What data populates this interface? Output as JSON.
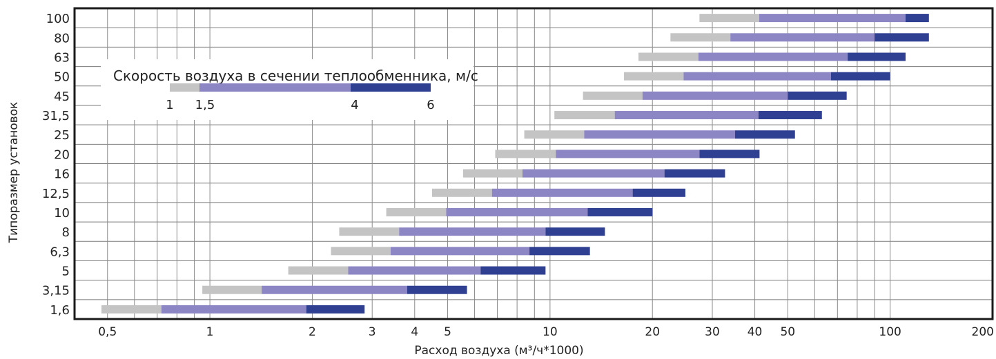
{
  "chart_data": {
    "type": "bar",
    "subtype": "floating-range",
    "x_scale": "log",
    "xlim": [
      0.4,
      200
    ],
    "xlabel": "Расход воздуха (м³/ч*1000)",
    "ylabel": "Типоразмер установок",
    "x_ticks": [
      {
        "v": 0.5,
        "label": "0,5"
      },
      {
        "v": 1,
        "label": "1"
      },
      {
        "v": 2,
        "label": "2"
      },
      {
        "v": 3,
        "label": "3"
      },
      {
        "v": 4,
        "label": "4"
      },
      {
        "v": 5,
        "label": "5"
      },
      {
        "v": 10,
        "label": "10"
      },
      {
        "v": 20,
        "label": "20"
      },
      {
        "v": 30,
        "label": "30"
      },
      {
        "v": 40,
        "label": "40"
      },
      {
        "v": 50,
        "label": "50"
      },
      {
        "v": 100,
        "label": "100"
      },
      {
        "v": 200,
        "label": "200"
      }
    ],
    "minor_grid": [
      0.6,
      0.7,
      0.8,
      0.9,
      6,
      7,
      8,
      9,
      60,
      70,
      80,
      90
    ],
    "categories": [
      "1,6",
      "3,15",
      "5",
      "6,3",
      "8",
      "10",
      "12,5",
      "16",
      "20",
      "25",
      "31,5",
      "45",
      "50",
      "63",
      "80",
      "100"
    ],
    "rows": [
      {
        "size": "1,6",
        "v1": 0.48,
        "v15": 0.72,
        "v4": 1.92,
        "v6": 2.85
      },
      {
        "size": "3,15",
        "v1": 0.95,
        "v15": 1.42,
        "v4": 3.8,
        "v6": 5.7
      },
      {
        "size": "5",
        "v1": 1.7,
        "v15": 2.55,
        "v4": 6.25,
        "v6": 9.7
      },
      {
        "size": "6,3",
        "v1": 2.27,
        "v15": 3.4,
        "v4": 8.7,
        "v6": 13.1
      },
      {
        "size": "8",
        "v1": 2.4,
        "v15": 3.6,
        "v4": 9.7,
        "v6": 14.5
      },
      {
        "size": "10",
        "v1": 3.3,
        "v15": 4.95,
        "v4": 12.9,
        "v6": 20.0
      },
      {
        "size": "12,5",
        "v1": 4.5,
        "v15": 6.75,
        "v4": 17.5,
        "v6": 25.0
      },
      {
        "size": "16",
        "v1": 5.55,
        "v15": 8.3,
        "v4": 21.7,
        "v6": 32.7
      },
      {
        "size": "20",
        "v1": 6.9,
        "v15": 10.4,
        "v4": 27.5,
        "v6": 41.3
      },
      {
        "size": "25",
        "v1": 8.4,
        "v15": 12.6,
        "v4": 35.0,
        "v6": 52.5
      },
      {
        "size": "31,5",
        "v1": 10.3,
        "v15": 15.5,
        "v4": 41.0,
        "v6": 63.0
      },
      {
        "size": "45",
        "v1": 12.5,
        "v15": 18.7,
        "v4": 50.0,
        "v6": 74.5
      },
      {
        "size": "50",
        "v1": 16.5,
        "v15": 24.7,
        "v4": 67.0,
        "v6": 100
      },
      {
        "size": "63",
        "v1": 18.2,
        "v15": 27.3,
        "v4": 75.0,
        "v6": 111
      },
      {
        "size": "80",
        "v1": 22.6,
        "v15": 33.9,
        "v4": 90.0,
        "v6": 130
      },
      {
        "size": "100",
        "v1": 27.5,
        "v15": 41.2,
        "v4": 111,
        "v6": 130
      }
    ],
    "series": [
      {
        "from": "v1",
        "to": "v15",
        "color": "#c4c4c4"
      },
      {
        "from": "v15",
        "to": "v4",
        "color": "#8c86c4"
      },
      {
        "from": "v4",
        "to": "v6",
        "color": "#2f3f91"
      }
    ],
    "legend": {
      "title": "Скорость воздуха в сечении теплообменника, м/с",
      "labels": [
        "1",
        "1,5",
        "4",
        "6"
      ],
      "position": "top-left"
    },
    "grid": true
  }
}
